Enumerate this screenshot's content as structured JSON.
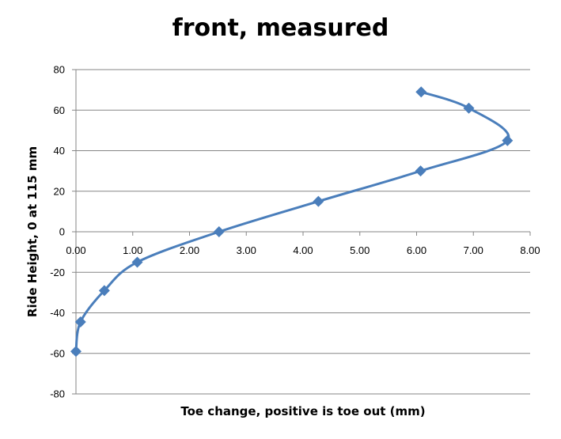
{
  "chart_data": {
    "type": "scatter",
    "title": "front, measured",
    "xlabel": "Toe change, positive is toe out (mm)",
    "ylabel": "Ride Height, 0 at 115 mm",
    "xlim": [
      0,
      8
    ],
    "ylim": [
      -80,
      80
    ],
    "x_ticks": [
      "0.00",
      "1.00",
      "2.00",
      "3.00",
      "4.00",
      "5.00",
      "6.00",
      "7.00",
      "8.00"
    ],
    "y_ticks": [
      "80",
      "60",
      "40",
      "20",
      "0",
      "-20",
      "-40",
      "-60",
      "-80"
    ],
    "grid": "horizontal",
    "line_style": "smoothed",
    "marker": "diamond",
    "series": [
      {
        "color": "#4a7ebb",
        "points": [
          {
            "x": 0.0,
            "y": -59
          },
          {
            "x": 0.08,
            "y": -44.5
          },
          {
            "x": 0.5,
            "y": -29
          },
          {
            "x": 1.08,
            "y": -15
          },
          {
            "x": 2.52,
            "y": 0
          },
          {
            "x": 4.27,
            "y": 15
          },
          {
            "x": 6.07,
            "y": 30
          },
          {
            "x": 7.6,
            "y": 45
          },
          {
            "x": 6.92,
            "y": 61
          },
          {
            "x": 6.08,
            "y": 69
          }
        ]
      }
    ]
  }
}
